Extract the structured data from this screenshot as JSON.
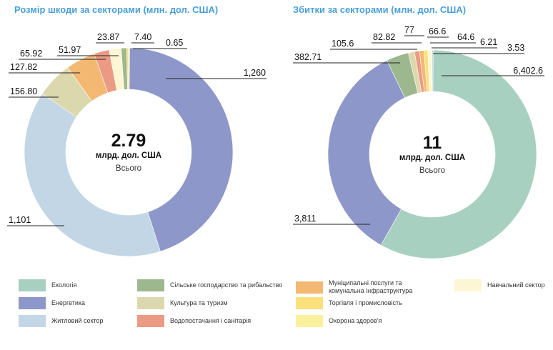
{
  "colors": {
    "ecology": "#a8d0c0",
    "energy": "#8e97c9",
    "housing": "#c3d6e6",
    "agriculture": "#9db88e",
    "culture": "#dcd8ad",
    "water": "#eb9a84",
    "municipal": "#f3b872",
    "trade": "#fbe07c",
    "health": "#fbf19d",
    "education": "#fdf6d4"
  },
  "chart_data": [
    {
      "type": "pie",
      "title": "Розмір шкоди за секторами (млн. дол. США)",
      "center": {
        "value": "2.79",
        "unit": "млрд. дол. США",
        "label": "Всього"
      },
      "slices": [
        {
          "key": "energy",
          "value": 1260,
          "label": "1,260"
        },
        {
          "key": "housing",
          "value": 1101,
          "label": "1,101"
        },
        {
          "key": "culture",
          "value": 156.8,
          "label": "156.80"
        },
        {
          "key": "municipal",
          "value": 127.82,
          "label": "127.82"
        },
        {
          "key": "water",
          "value": 65.92,
          "label": "65.92"
        },
        {
          "key": "education",
          "value": 51.97,
          "label": "51.97"
        },
        {
          "key": "agriculture",
          "value": 23.87,
          "label": "23.87"
        },
        {
          "key": "trade",
          "value": 7.4,
          "label": "7.40"
        },
        {
          "key": "health",
          "value": 0.65,
          "label": "0.65"
        }
      ]
    },
    {
      "type": "pie",
      "title": "Збитки за секторами (млн. дол. США)",
      "center": {
        "value": "11",
        "unit": "млрд. дол. США",
        "label": "Всього"
      },
      "slices": [
        {
          "key": "ecology",
          "value": 6402.6,
          "label": "6,402.6"
        },
        {
          "key": "energy",
          "value": 3811,
          "label": "3,811"
        },
        {
          "key": "agriculture",
          "value": 382.71,
          "label": "382.71"
        },
        {
          "key": "culture",
          "value": 105.6,
          "label": "105.6"
        },
        {
          "key": "water",
          "value": 82.82,
          "label": "82.82"
        },
        {
          "key": "municipal",
          "value": 77,
          "label": "77"
        },
        {
          "key": "trade",
          "value": 66.6,
          "label": "66.6"
        },
        {
          "key": "education",
          "value": 64.6,
          "label": "64.6"
        },
        {
          "key": "health",
          "value": 6.21,
          "label": "6.21"
        },
        {
          "key": "housing",
          "value": 3.53,
          "label": "3.53"
        }
      ]
    }
  ],
  "legend": [
    {
      "key": "ecology",
      "label": "Екологія"
    },
    {
      "key": "energy",
      "label": "Енергетика"
    },
    {
      "key": "housing",
      "label": "Житловий сектор"
    },
    {
      "key": "agriculture",
      "label": "Сільське господарство та рибальство"
    },
    {
      "key": "culture",
      "label": "Культура та туризм"
    },
    {
      "key": "water",
      "label": "Водопостачання і санітарія"
    },
    {
      "key": "municipal",
      "label": "Муніципальні послуги та комунальна інфраструктура"
    },
    {
      "key": "trade",
      "label": "Торгівля і промисловість"
    },
    {
      "key": "health",
      "label": "Охорона здоров'я"
    },
    {
      "key": "education",
      "label": "Навчальний сектор"
    }
  ]
}
